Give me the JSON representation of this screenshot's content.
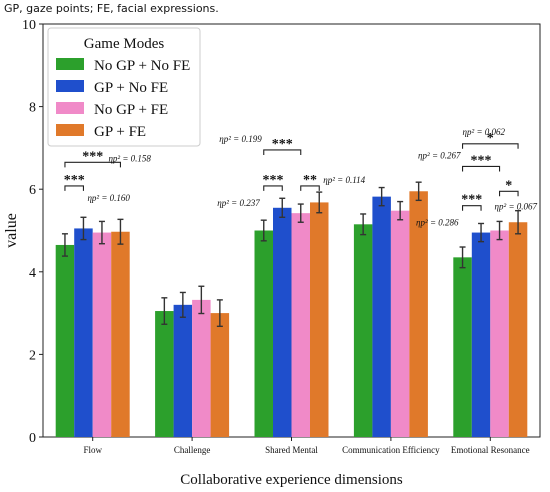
{
  "caption": "GP, gaze points; FE, facial expressions.",
  "chart_data": {
    "type": "bar",
    "xlabel": "Collaborative experience dimensions",
    "ylabel": "value",
    "ylim": [
      0,
      10
    ],
    "yticks": [
      0,
      2,
      4,
      6,
      8,
      10
    ],
    "categories": [
      "Flow",
      "Challenge",
      "Shared Mental",
      "Communication Efficiency",
      "Emotional Resonance"
    ],
    "legend": {
      "title": "Game Modes",
      "position": "top-left"
    },
    "series": [
      {
        "name": "No GP + No FE",
        "color": "#2ca02c",
        "values": [
          4.65,
          3.05,
          5.0,
          5.15,
          4.35
        ],
        "errors": [
          0.27,
          0.32,
          0.25,
          0.25,
          0.25
        ]
      },
      {
        "name": "GP + No FE",
        "color": "#1f4fcc",
        "values": [
          5.05,
          3.2,
          5.55,
          5.82,
          4.95
        ],
        "errors": [
          0.27,
          0.3,
          0.23,
          0.22,
          0.22
        ]
      },
      {
        "name": "No GP + FE",
        "color": "#f08ac8",
        "values": [
          4.95,
          3.32,
          5.42,
          5.48,
          5.0
        ],
        "errors": [
          0.27,
          0.33,
          0.22,
          0.22,
          0.22
        ]
      },
      {
        "name": "GP + FE",
        "color": "#e0792a",
        "values": [
          4.97,
          3.0,
          5.68,
          5.95,
          5.2
        ],
        "errors": [
          0.3,
          0.32,
          0.25,
          0.22,
          0.28
        ]
      }
    ],
    "annotations": [
      {
        "stars": "***",
        "effect": "ηp² = 0.160",
        "category": 0,
        "from": 0,
        "to": 1,
        "level": 6.08
      },
      {
        "stars": "***",
        "effect": "ηp² = 0.158",
        "category": 0,
        "from": 0,
        "to": 3,
        "level": 6.65
      },
      {
        "stars": "***",
        "effect": "ηp² = 0.237",
        "category": 2,
        "from": 0,
        "to": 1,
        "level": 6.08
      },
      {
        "stars": "***",
        "effect": "ηp² = 0.199",
        "category": 2,
        "from": 0,
        "to": 2,
        "level": 6.95
      },
      {
        "stars": "**",
        "effect": "ηp² = 0.114",
        "category": 2,
        "from": 2,
        "to": 3,
        "level": 6.08
      },
      {
        "stars": "***",
        "effect": "ηp² = 0.286",
        "category": 4,
        "from": 0,
        "to": 1,
        "level": 5.6
      },
      {
        "stars": "***",
        "effect": "ηp² = 0.267",
        "category": 4,
        "from": 0,
        "to": 2,
        "level": 6.55
      },
      {
        "stars": "*",
        "effect": "ηp² = 0.062",
        "category": 4,
        "from": 0,
        "to": 3,
        "level": 7.1
      },
      {
        "stars": "*",
        "effect": "ηp² = 0.067",
        "category": 4,
        "from": 2,
        "to": 3,
        "level": 5.95
      }
    ]
  }
}
